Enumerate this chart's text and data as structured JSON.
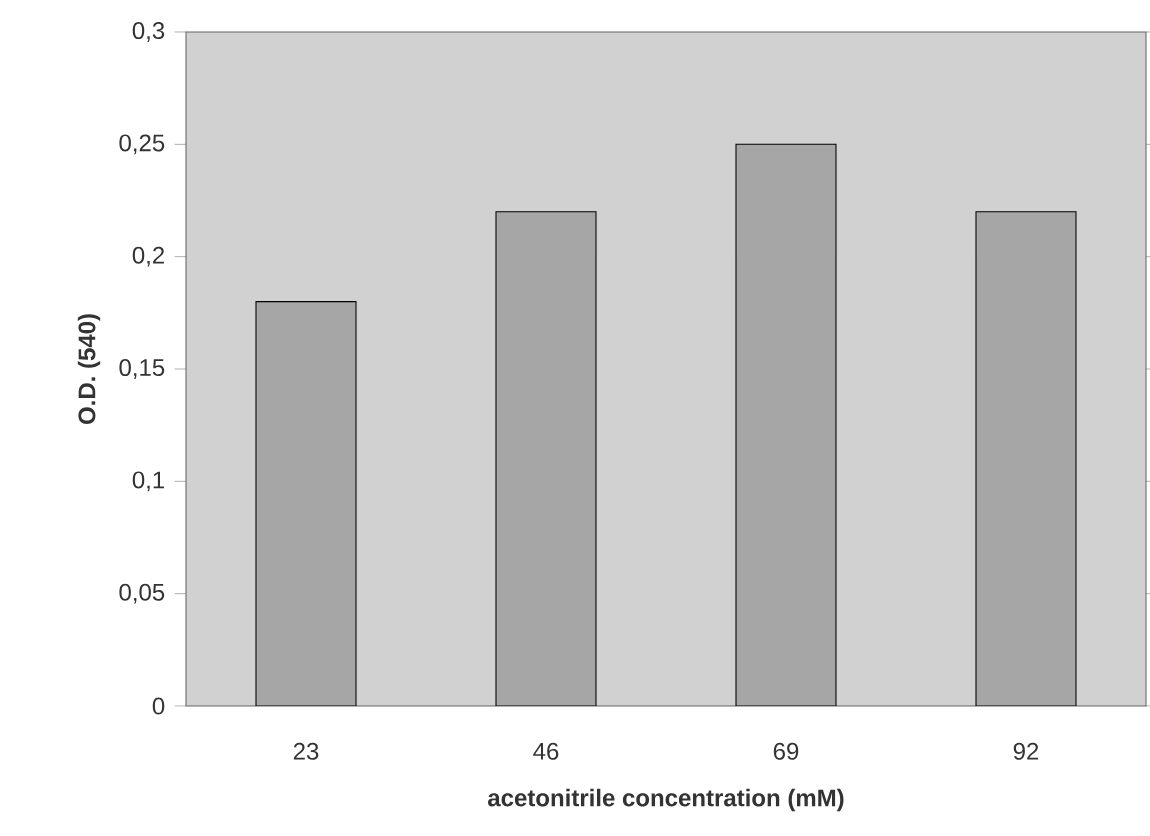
{
  "chart_data": {
    "type": "bar",
    "xlabel": "acetonitrile concentration (mM)",
    "ylabel": "O.D. (540)",
    "categories": [
      "23",
      "46",
      "69",
      "92"
    ],
    "values": [
      0.18,
      0.22,
      0.25,
      0.22
    ],
    "color": "#a6a6a6",
    "ylim": [
      0,
      0.3
    ],
    "yticks": [
      0,
      {
        "value": 0.05,
        "label": "0,05"
      },
      {
        "value": 0.1,
        "label": "0,1"
      },
      {
        "value": 0.15,
        "label": "0,15"
      },
      {
        "value": 0.2,
        "label": "0,2"
      },
      {
        "value": 0.25,
        "label": "0,25"
      },
      {
        "value": 0.3,
        "label": "0,3"
      }
    ],
    "grid": false
  }
}
